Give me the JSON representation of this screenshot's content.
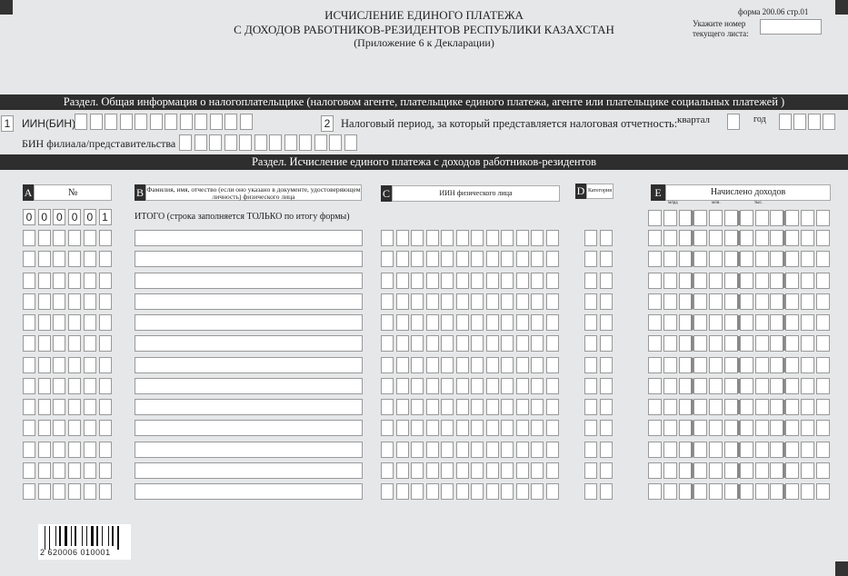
{
  "header": {
    "title1": "ИСЧИСЛЕНИЕ  ЕДИНОГО ПЛАТЕЖА",
    "title2": "С ДОХОДОВ РАБОТНИКОВ-РЕЗИДЕНТОВ РЕСПУБЛИКИ КАЗАХСТАН",
    "subtitle": "(Приложение 6 к Декларации)",
    "form_code": "форма 200.06 стр.01",
    "sheet_label1": "Укажите номер",
    "sheet_label2": "текущего листа:",
    "sheet_value": ""
  },
  "section1": {
    "title": "Раздел. Общая информация о налогоплательщике (налоговом агенте, плательщике единого платежа, агенте или плательщике социальных платежей )",
    "field1_num": "1",
    "field1_label": "ИИН(БИН)",
    "field2_num": "2",
    "field2_label": "Налоговый период, за который представляется налоговая отчетность:",
    "quarter_label": "квартал",
    "year_label": "год",
    "branch_label": "БИН филиала/представительства"
  },
  "section2": {
    "title": "Раздел. Исчисление  единого платежа с доходов работников-резидентов",
    "col_a_letter": "A",
    "col_a": "№",
    "col_b_letter": "B",
    "col_b": "Фамилия, имя, отчество (если оно указано в документе, удостоверяющем личность) физического лица",
    "col_c_letter": "C",
    "col_c": "ИИН физического лица",
    "col_d_letter": "D",
    "col_d": "Категория",
    "col_e_letter": "E",
    "col_e": "Начислено доходов",
    "e_units": [
      "млрд",
      "млн.",
      "тыс."
    ],
    "total_number": [
      "0",
      "0",
      "0",
      "0",
      "0",
      "1"
    ],
    "total_label": "ИТОГО (строка заполняется ТОЛЬКО по итогу формы)",
    "row_count": 13
  },
  "barcode": {
    "digits": "2 620006 010001"
  }
}
